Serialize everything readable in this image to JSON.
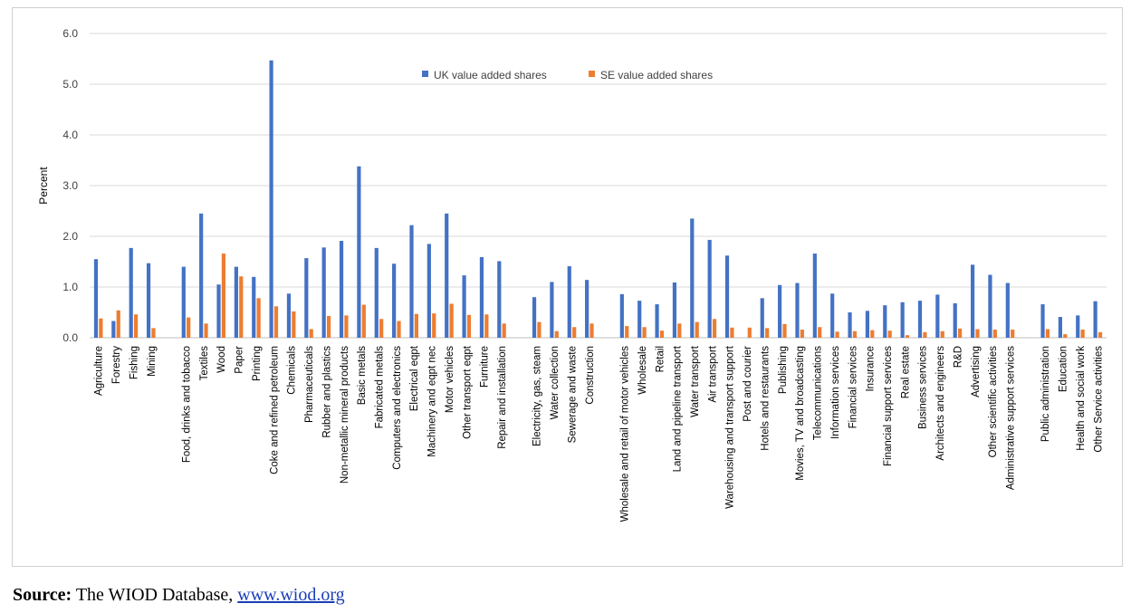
{
  "chart_data": {
    "type": "bar",
    "ylabel": "Percent",
    "ylim": [
      0,
      6
    ],
    "yticks": [
      "0.0",
      "1.0",
      "2.0",
      "3.0",
      "4.0",
      "5.0",
      "6.0"
    ],
    "grid": true,
    "legend_position": "top-center",
    "categories": [
      "Agriculture",
      "Forestry",
      "Fishing",
      "Mining",
      "",
      "Food, drinks and tobacco",
      "Textiles",
      "Wood",
      "Paper",
      "Printing",
      "Coke and refined petroleum",
      "Chemicals",
      "Pharmaceuticals",
      "Rubber and plastics",
      "Non-metallic mineral products",
      "Basic metals",
      "Fabricated metals",
      "Computers and electronics",
      "Electrical eqpt",
      "Machinery and eqpt nec",
      "Motor vehicles",
      "Other transport eqpt",
      "Furniture",
      "Repair and installation",
      "",
      "Electricity, gas, steam",
      "Water collection",
      "Sewerage and waste",
      "Construction",
      "",
      "Wholesale and retail of motor vehicles",
      "Wholesale",
      "Retail",
      "Land and pipeline transport",
      "Water transport",
      "Air transport",
      "Warehousing and transport support",
      "Post and courier",
      "Hotels and restaurants",
      "Publishing",
      "Movies, TV and broadcasting",
      "Telecommunications",
      "Information services",
      "Financial services",
      "Insurance",
      "Financial support services",
      "Real estate",
      "Business services",
      "Architects and engineers",
      "R&D",
      "Advertising",
      "Other scientific activities",
      "Administrative support services",
      "",
      "Public administration",
      "Education",
      "Health and social work",
      "Other Service activities"
    ],
    "series": [
      {
        "name": "UK value added shares",
        "color": "#4472c4",
        "values": [
          1.55,
          0.33,
          1.77,
          1.47,
          null,
          1.4,
          2.45,
          1.05,
          1.4,
          1.2,
          5.47,
          0.87,
          1.57,
          1.78,
          1.91,
          3.38,
          1.77,
          1.46,
          2.22,
          1.85,
          2.45,
          1.23,
          1.59,
          1.51,
          null,
          0.8,
          1.1,
          1.41,
          1.14,
          null,
          0.86,
          0.73,
          0.66,
          1.09,
          2.35,
          1.93,
          1.62,
          0.0,
          0.78,
          1.04,
          1.08,
          1.66,
          0.87,
          0.5,
          0.53,
          0.64,
          0.7,
          0.73,
          0.85,
          0.68,
          1.44,
          1.24,
          1.08,
          null,
          0.66,
          0.41,
          0.44,
          0.72
        ]
      },
      {
        "name": "SE value added shares",
        "color": "#ed7d31",
        "values": [
          0.38,
          0.54,
          0.46,
          0.19,
          null,
          0.4,
          0.28,
          1.66,
          1.21,
          0.78,
          0.62,
          0.52,
          0.17,
          0.43,
          0.44,
          0.65,
          0.37,
          0.33,
          0.47,
          0.48,
          0.67,
          0.45,
          0.46,
          0.28,
          null,
          0.31,
          0.13,
          0.21,
          0.28,
          null,
          0.23,
          0.21,
          0.14,
          0.28,
          0.31,
          0.37,
          0.2,
          0.2,
          0.19,
          0.27,
          0.16,
          0.21,
          0.12,
          0.13,
          0.15,
          0.14,
          0.05,
          0.11,
          0.13,
          0.18,
          0.17,
          0.16,
          0.16,
          null,
          0.17,
          0.07,
          0.16,
          0.11
        ]
      }
    ]
  },
  "source": {
    "label": "Source:",
    "text": " The WIOD Database, ",
    "link": "www.wiod.org"
  }
}
